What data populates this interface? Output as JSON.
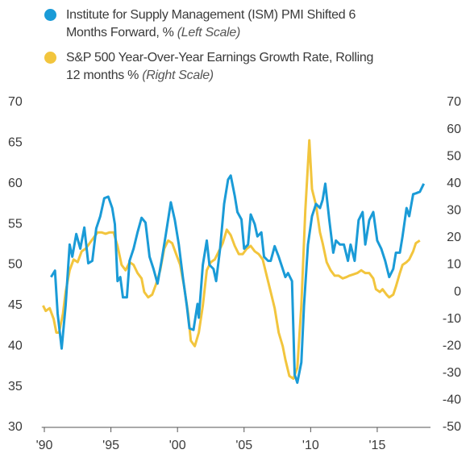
{
  "chart_data": {
    "type": "line",
    "xlim": [
      1989.8,
      2019.0
    ],
    "xticks": [
      {
        "value": 1990,
        "label": "'90"
      },
      {
        "value": 1995,
        "label": "'95"
      },
      {
        "value": 2000,
        "label": "'00"
      },
      {
        "value": 2005,
        "label": "'05"
      },
      {
        "value": 2010,
        "label": "'10"
      },
      {
        "value": 2015,
        "label": "'15"
      }
    ],
    "ylim": [
      30,
      70
    ],
    "yticks": [
      30,
      35,
      40,
      45,
      50,
      55,
      60,
      65,
      70
    ],
    "y2lim": [
      -50,
      70
    ],
    "y2ticks": [
      -50,
      -40,
      -30,
      -20,
      -10,
      0,
      10,
      20,
      30,
      40,
      50,
      60,
      70
    ],
    "grid": false,
    "series": [
      {
        "name": "Institute for Supply Management (ISM) PMI Shifted 6 Months Forward, %",
        "scale": "(Left Scale)",
        "color": "#1a9bd7",
        "axis": "y",
        "x": [
          1990.5,
          1990.8,
          1991.0,
          1991.3,
          1991.6,
          1991.9,
          1992.1,
          1992.4,
          1992.7,
          1993.0,
          1993.3,
          1993.6,
          1993.9,
          1994.2,
          1994.5,
          1994.8,
          1995.1,
          1995.3,
          1995.5,
          1995.7,
          1995.9,
          1996.2,
          1996.4,
          1996.7,
          1997.0,
          1997.3,
          1997.6,
          1997.9,
          1998.2,
          1998.5,
          1998.8,
          1999.1,
          1999.5,
          1999.8,
          2000.1,
          2000.4,
          2000.7,
          2000.9,
          2001.2,
          2001.5,
          2001.6,
          2001.9,
          2002.2,
          2002.4,
          2002.7,
          2002.9,
          2003.2,
          2003.5,
          2003.8,
          2004.0,
          2004.3,
          2004.5,
          2004.8,
          2005.0,
          2005.3,
          2005.5,
          2005.8,
          2006.0,
          2006.3,
          2006.5,
          2006.8,
          2007.0,
          2007.3,
          2007.6,
          2007.9,
          2008.1,
          2008.3,
          2008.6,
          2008.8,
          2009.0,
          2009.3,
          2009.5,
          2009.8,
          2010.1,
          2010.4,
          2010.7,
          2010.9,
          2011.1,
          2011.4,
          2011.7,
          2011.9,
          2012.2,
          2012.5,
          2012.8,
          2013.0,
          2013.3,
          2013.6,
          2013.9,
          2014.1,
          2014.4,
          2014.7,
          2015.0,
          2015.3,
          2015.6,
          2015.9,
          2016.2,
          2016.4,
          2016.7,
          2016.9,
          2017.2,
          2017.4,
          2017.7,
          2017.9,
          2018.2,
          2018.5
        ],
        "values": [
          48.5,
          49.3,
          44,
          39.7,
          45,
          52.5,
          51,
          53.8,
          52,
          54.6,
          50.2,
          50.5,
          54.5,
          56,
          58.2,
          58.4,
          57,
          55,
          48,
          48.5,
          46,
          46,
          50.5,
          52,
          54,
          55.8,
          55.2,
          51,
          49.5,
          47.7,
          50.5,
          53.5,
          57.7,
          55.5,
          52.5,
          48.5,
          45,
          42.2,
          42,
          45.2,
          43.5,
          50,
          53,
          50,
          49.5,
          48,
          52,
          57.5,
          60.5,
          61,
          58.5,
          56.5,
          55.6,
          52,
          52.5,
          56.2,
          55,
          53.5,
          54,
          51,
          50.5,
          50.5,
          52.3,
          51,
          49.5,
          48.5,
          49,
          48,
          36.5,
          35.5,
          38,
          45,
          52.5,
          56,
          57.5,
          57,
          58,
          60,
          55.5,
          51.5,
          53,
          52.5,
          52.5,
          50.5,
          52.5,
          50.5,
          55.5,
          56.5,
          52.5,
          55.5,
          56.5,
          53,
          52,
          50.5,
          48.5,
          49.5,
          51.5,
          51.5,
          53.5,
          57,
          56,
          58.7,
          58.8,
          59,
          60
        ]
      },
      {
        "name": "S&P 500 Year-Over-Year Earnings Growth Rate, Rolling 12 months %",
        "scale": "(Right Scale)",
        "color": "#f2c53d",
        "axis": "y2",
        "x": [
          1989.9,
          1990.1,
          1990.4,
          1990.7,
          1990.9,
          1991.1,
          1991.4,
          1991.6,
          1991.9,
          1992.2,
          1992.5,
          1992.8,
          1993.1,
          1993.4,
          1993.7,
          1994.0,
          1994.3,
          1994.6,
          1994.9,
          1995.2,
          1995.5,
          1995.8,
          1996.1,
          1996.4,
          1996.7,
          1997.0,
          1997.3,
          1997.5,
          1997.8,
          1998.1,
          1998.4,
          1998.7,
          1999.0,
          1999.3,
          1999.6,
          1999.9,
          2000.2,
          2000.5,
          2000.8,
          2001.0,
          2001.3,
          2001.6,
          2001.9,
          2002.2,
          2002.5,
          2002.8,
          2003.1,
          2003.4,
          2003.7,
          2004.0,
          2004.3,
          2004.6,
          2004.9,
          2005.2,
          2005.5,
          2005.8,
          2006.1,
          2006.4,
          2006.7,
          2007.0,
          2007.3,
          2007.6,
          2007.9,
          2008.1,
          2008.4,
          2008.7,
          2009.0,
          2009.3,
          2009.6,
          2009.9,
          2010.1,
          2010.4,
          2010.7,
          2010.9,
          2011.2,
          2011.5,
          2011.8,
          2012.1,
          2012.4,
          2012.7,
          2012.9,
          2013.2,
          2013.5,
          2013.8,
          2014.1,
          2014.4,
          2014.7,
          2014.9,
          2015.2,
          2015.4,
          2015.7,
          2015.9,
          2016.2,
          2016.4,
          2016.7,
          2016.9,
          2017.2,
          2017.4,
          2017.7,
          2017.9,
          2018.2
        ],
        "values": [
          -5,
          -7,
          -6,
          -10,
          -15,
          -15,
          -8,
          0,
          8,
          12,
          11,
          15,
          16,
          18,
          20,
          22,
          22,
          21.5,
          22,
          22,
          17,
          10,
          8,
          11,
          10,
          7,
          5,
          0,
          -2,
          -1,
          3,
          8,
          16,
          19,
          18,
          14,
          10,
          2,
          -8,
          -18,
          -20,
          -15,
          -5,
          8,
          11,
          12,
          15,
          18,
          23,
          21,
          17,
          14,
          14,
          16,
          17,
          15,
          14,
          12,
          6,
          0,
          -6,
          -15,
          -20,
          -25,
          -31,
          -32,
          -28,
          -5,
          30,
          56,
          38,
          32,
          22,
          18,
          11,
          8,
          6,
          6,
          5,
          5.5,
          6,
          6.5,
          7,
          8,
          7,
          7,
          5,
          1,
          0,
          1,
          -1,
          -2,
          -1,
          2,
          7,
          10,
          11,
          12,
          15,
          18,
          19
        ]
      }
    ]
  }
}
